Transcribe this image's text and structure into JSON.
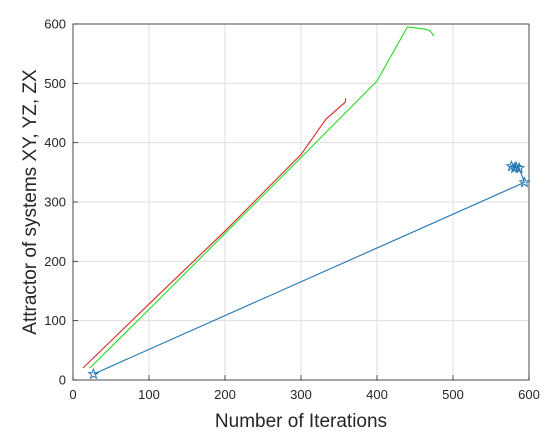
{
  "chart_data": {
    "type": "line",
    "title": "",
    "xlabel": "Number of Iterations",
    "ylabel": "Attractor of systems XY, YZ, ZX",
    "xlim": [
      0,
      600
    ],
    "ylim": [
      0,
      600
    ],
    "xticks": [
      "0",
      "100",
      "200",
      "300",
      "400",
      "500",
      "600"
    ],
    "yticks": [
      "0",
      "100",
      "200",
      "300",
      "400",
      "500",
      "600"
    ],
    "grid": true,
    "legend": "none",
    "series": [
      {
        "color": "#d62728",
        "marker": "none",
        "x": [
          13,
          100,
          200,
          300,
          333,
          358,
          359
        ],
        "y": [
          20,
          128,
          251,
          380,
          440,
          468,
          475
        ]
      },
      {
        "color": "#22dd22",
        "marker": "none",
        "x": [
          22,
          100,
          200,
          300,
          400,
          440,
          447,
          465,
          470,
          475
        ],
        "y": [
          20,
          119,
          247,
          375,
          504,
          595,
          594,
          591,
          588,
          580
        ]
      },
      {
        "color": "#1f77b4",
        "marker": "star",
        "x": [
          27,
          594,
          587,
          583,
          581,
          577
        ],
        "y": [
          10,
          333,
          357,
          359,
          357,
          360
        ]
      }
    ]
  }
}
